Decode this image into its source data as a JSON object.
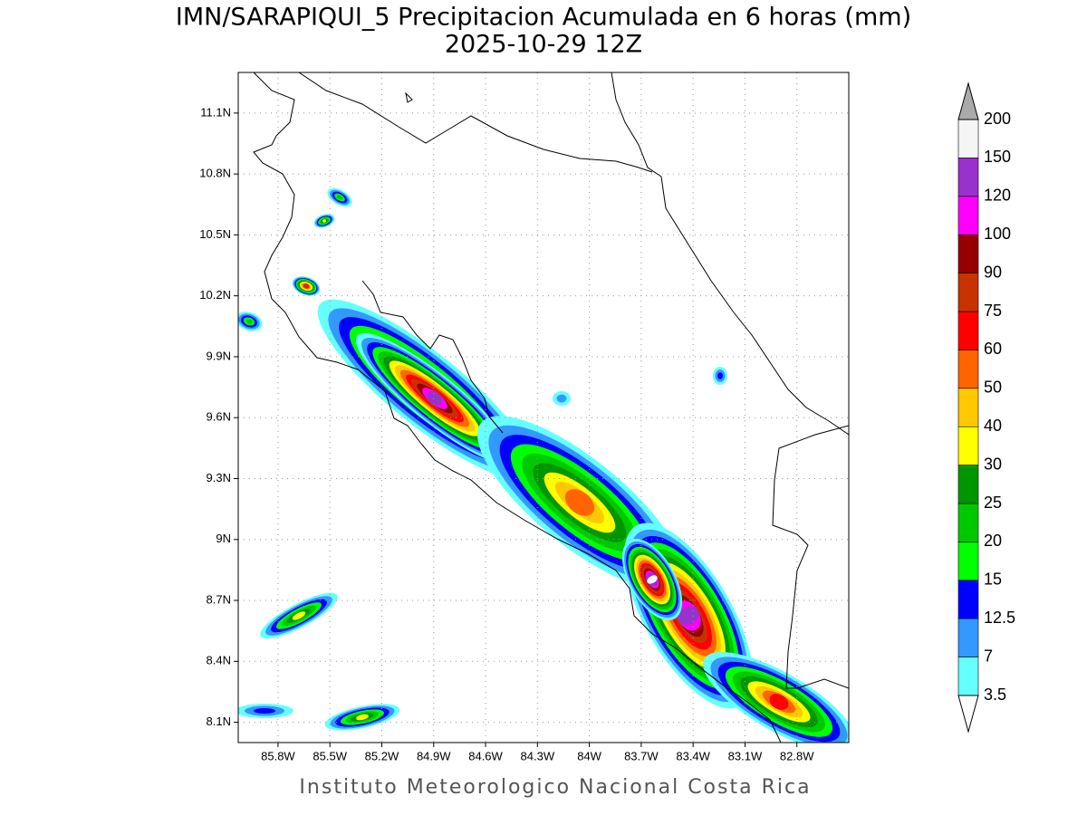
{
  "chart_data": {
    "type": "map",
    "title": "IMN/SARAPIQUI_5 Precipitacion Acumulada en 6 horas (mm)",
    "subtitle": "2025-10-29 12Z",
    "xlim": [
      -86.03,
      -82.5
    ],
    "ylim": [
      8.0,
      11.3
    ],
    "xticks": [
      {
        "value": -85.8,
        "label": "85.8W"
      },
      {
        "value": -85.5,
        "label": "85.5W"
      },
      {
        "value": -85.2,
        "label": "85.2W"
      },
      {
        "value": -84.9,
        "label": "84.9W"
      },
      {
        "value": -84.6,
        "label": "84.6W"
      },
      {
        "value": -84.3,
        "label": "84.3W"
      },
      {
        "value": -84.0,
        "label": "84W"
      },
      {
        "value": -83.7,
        "label": "83.7W"
      },
      {
        "value": -83.4,
        "label": "83.4W"
      },
      {
        "value": -83.1,
        "label": "83.1W"
      },
      {
        "value": -82.8,
        "label": "82.8W"
      }
    ],
    "yticks": [
      {
        "value": 8.1,
        "label": "8.1N"
      },
      {
        "value": 8.4,
        "label": "8.4N"
      },
      {
        "value": 8.7,
        "label": "8.7N"
      },
      {
        "value": 9.0,
        "label": "9N"
      },
      {
        "value": 9.3,
        "label": "9.3N"
      },
      {
        "value": 9.6,
        "label": "9.6N"
      },
      {
        "value": 9.9,
        "label": "9.9N"
      },
      {
        "value": 10.2,
        "label": "10.2N"
      },
      {
        "value": 10.5,
        "label": "10.5N"
      },
      {
        "value": 10.8,
        "label": "10.8N"
      },
      {
        "value": 11.1,
        "label": "11.1N"
      }
    ],
    "grid": true,
    "colorbar": {
      "levels": [
        3.5,
        7,
        12.5,
        15,
        20,
        25,
        30,
        40,
        50,
        60,
        75,
        90,
        100,
        120,
        150,
        200
      ],
      "colors": [
        "#66ffff",
        "#3399ff",
        "#0000ff",
        "#00ff00",
        "#00c800",
        "#009600",
        "#ffff00",
        "#ffc800",
        "#ff6400",
        "#ff0000",
        "#c83200",
        "#960000",
        "#ff00ff",
        "#9932cc",
        "#f5f5f5"
      ],
      "under_color": "#ffffff",
      "over_color": "#aaaaaa"
    }
  },
  "footer": "Instituto Meteorologico Nacional Costa Rica"
}
